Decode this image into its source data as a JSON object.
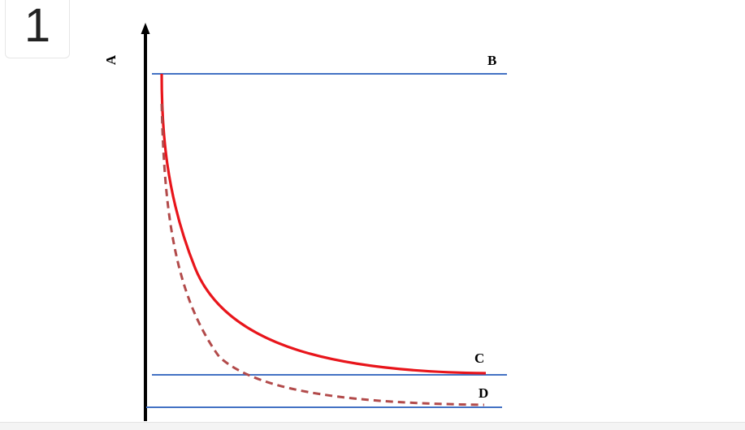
{
  "badge": {
    "number": "1"
  },
  "diagram": {
    "axis_label": "A",
    "lines": {
      "top": {
        "label": "B",
        "color": "#4472C4"
      },
      "middle": {
        "label": "C",
        "color": "#4472C4"
      },
      "bottom": {
        "label": "D",
        "color": "#4472C4"
      }
    },
    "curves": {
      "solid": {
        "color": "#E8151B",
        "style": "solid"
      },
      "dashed": {
        "color": "#B24A4A",
        "style": "dashed"
      }
    },
    "axis_color": "#000000"
  }
}
